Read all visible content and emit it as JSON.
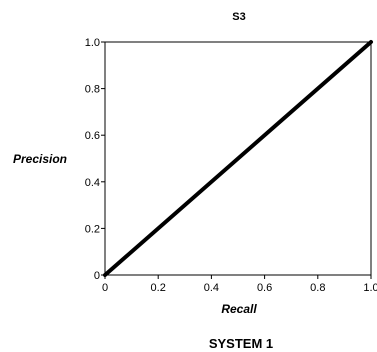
{
  "chart_data": {
    "type": "line",
    "title": "S3",
    "xlabel": "Recall",
    "ylabel": "Precision",
    "caption": "SYSTEM 1",
    "xlim": [
      0,
      1.0
    ],
    "ylim": [
      0,
      1.0
    ],
    "x_ticks": [
      {
        "value": 0,
        "label": "0"
      },
      {
        "value": 0.2,
        "label": "0.2"
      },
      {
        "value": 0.4,
        "label": "0.4"
      },
      {
        "value": 0.6,
        "label": "0.6"
      },
      {
        "value": 0.8,
        "label": "0.8"
      },
      {
        "value": 1.0,
        "label": "1.0"
      }
    ],
    "y_ticks": [
      {
        "value": 0,
        "label": "0"
      },
      {
        "value": 0.2,
        "label": "0.2"
      },
      {
        "value": 0.4,
        "label": "0.4"
      },
      {
        "value": 0.6,
        "label": "0.6"
      },
      {
        "value": 0.8,
        "label": "0.8"
      },
      {
        "value": 1.0,
        "label": "1.0"
      }
    ],
    "grid": false,
    "series": [
      {
        "x": [
          0,
          1.0
        ],
        "y": [
          0,
          1.0
        ],
        "color": "#000000"
      }
    ]
  }
}
